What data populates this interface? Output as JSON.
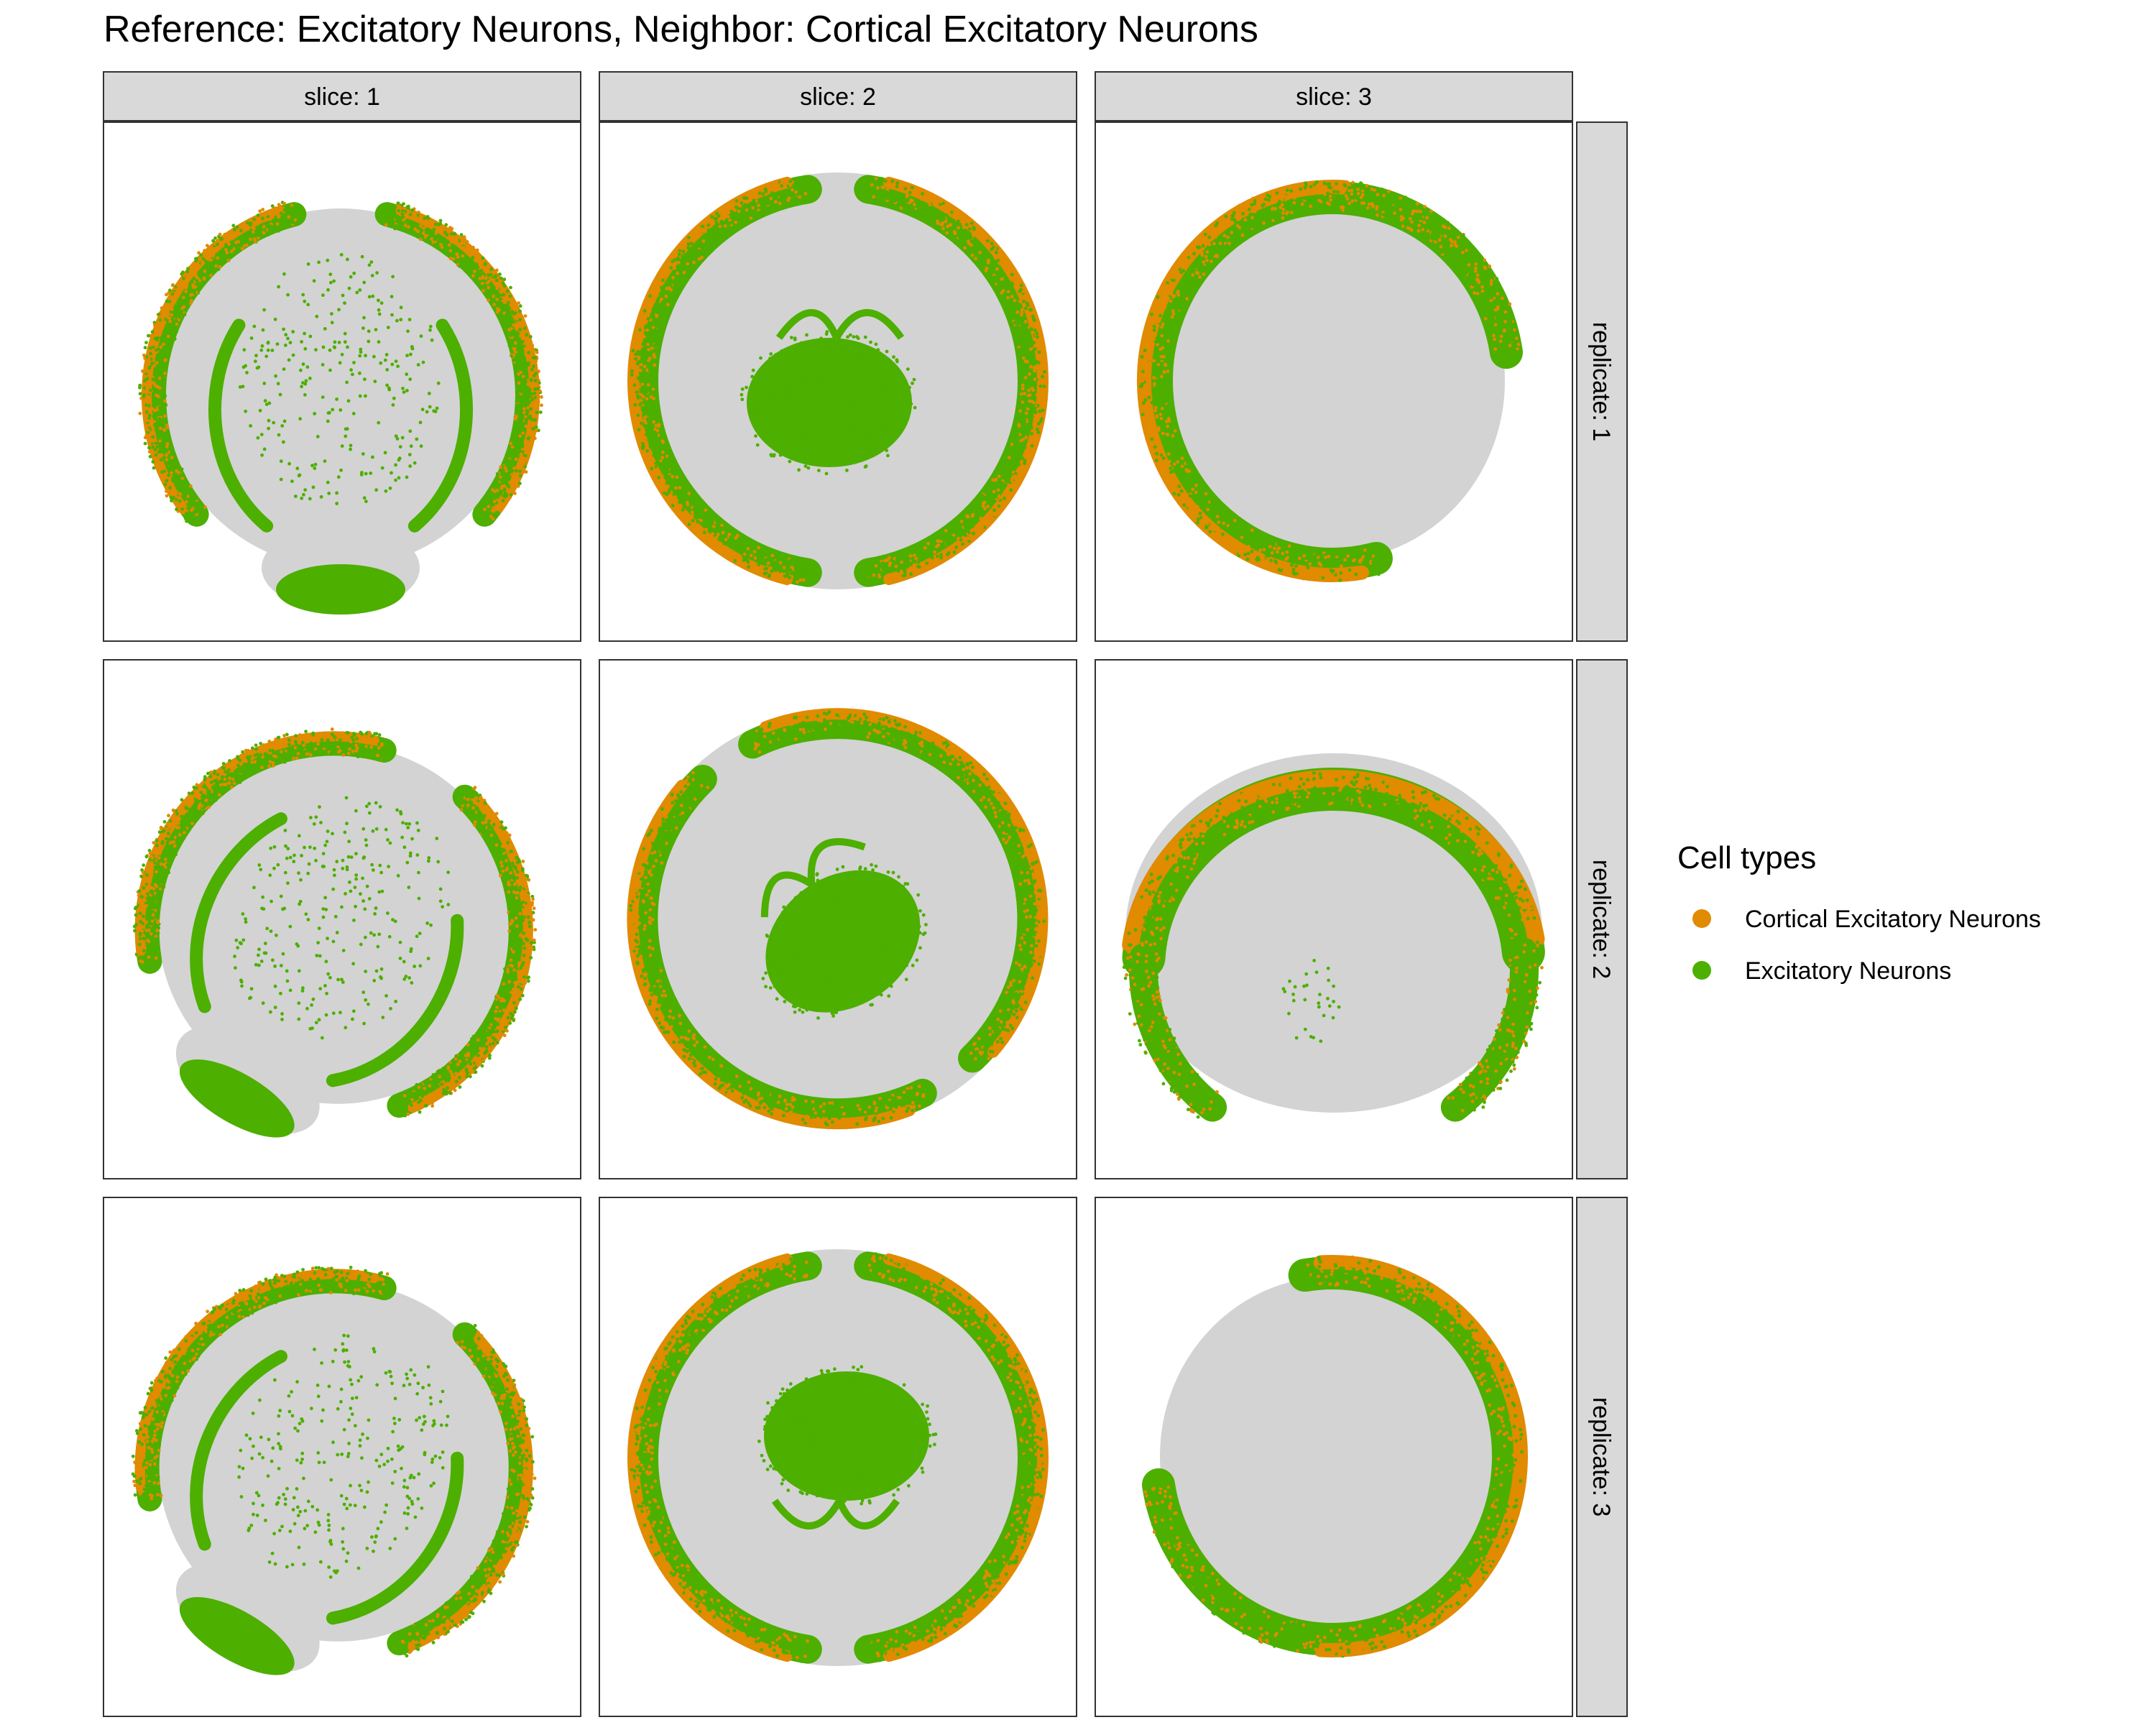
{
  "chart_data": {
    "type": "scatter",
    "title": "Reference: Excitatory Neurons, Neighbor: Cortical Excitatory Neurons",
    "facet_columns": [
      "slice: 1",
      "slice: 2",
      "slice: 3"
    ],
    "facet_rows": [
      "replicate: 1",
      "replicate: 2",
      "replicate: 3"
    ],
    "xlabel": "",
    "ylabel": "",
    "axes_visible": false,
    "grid": false,
    "legend": {
      "title": "Cell types",
      "position": "right",
      "entries": [
        {
          "label": "Cortical Excitatory Neurons",
          "color": "#E08B00"
        },
        {
          "label": "Excitatory Neurons",
          "color": "#4DAF00"
        }
      ]
    },
    "background_cells_color": "#D3D3D3",
    "panels": [
      {
        "row": 1,
        "col": 1,
        "shape": "coronal-split",
        "rotation": 0,
        "cortex_cortical_fraction": 0.45,
        "inner_density": "sparse"
      },
      {
        "row": 1,
        "col": 2,
        "shape": "full-with-core",
        "rotation": 0,
        "cortex_cortical_fraction": 0.4,
        "inner_density": "dense"
      },
      {
        "row": 1,
        "col": 3,
        "shape": "c-shape",
        "rotation": 0,
        "cortex_cortical_fraction": 0.5,
        "inner_density": "none"
      },
      {
        "row": 2,
        "col": 1,
        "shape": "coronal-split",
        "rotation": 30,
        "cortex_cortical_fraction": 0.45,
        "inner_density": "sparse"
      },
      {
        "row": 2,
        "col": 2,
        "shape": "full-with-core",
        "rotation": -35,
        "cortex_cortical_fraction": 0.4,
        "inner_density": "dense"
      },
      {
        "row": 2,
        "col": 3,
        "shape": "coronal-top",
        "rotation": 0,
        "cortex_cortical_fraction": 0.45,
        "inner_density": "none"
      },
      {
        "row": 3,
        "col": 1,
        "shape": "coronal-split",
        "rotation": 30,
        "cortex_cortical_fraction": 0.45,
        "inner_density": "sparse"
      },
      {
        "row": 3,
        "col": 2,
        "shape": "full-with-core",
        "rotation": 180,
        "cortex_cortical_fraction": 0.45,
        "inner_density": "dense"
      },
      {
        "row": 3,
        "col": 3,
        "shape": "c-shape-mirror",
        "rotation": 0,
        "cortex_cortical_fraction": 0.45,
        "inner_density": "none"
      }
    ]
  }
}
